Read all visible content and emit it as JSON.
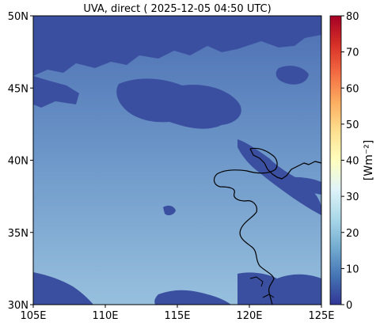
{
  "title": "UVA, direct ( 2025-12-05 04:50 UTC)",
  "map": {
    "lon_ticks": [
      "105E",
      "110E",
      "115E",
      "120E",
      "125E"
    ],
    "lat_ticks": [
      "30N",
      "35N",
      "40N",
      "45N",
      "50N"
    ],
    "lon_range": [
      105,
      125
    ],
    "lat_range": [
      30,
      50
    ]
  },
  "colorbar": {
    "label": "[Wm⁻²]",
    "ticks": [
      "0",
      "10",
      "20",
      "30",
      "40",
      "50",
      "60",
      "70",
      "80"
    ],
    "range": [
      0,
      80
    ],
    "colormap": "RdYlBu_r"
  },
  "colors": {
    "cloud": "#3b4fa0",
    "clear_north": "#5a82bf",
    "clear_south": "#8fb8da",
    "coastline": "#000000"
  }
}
